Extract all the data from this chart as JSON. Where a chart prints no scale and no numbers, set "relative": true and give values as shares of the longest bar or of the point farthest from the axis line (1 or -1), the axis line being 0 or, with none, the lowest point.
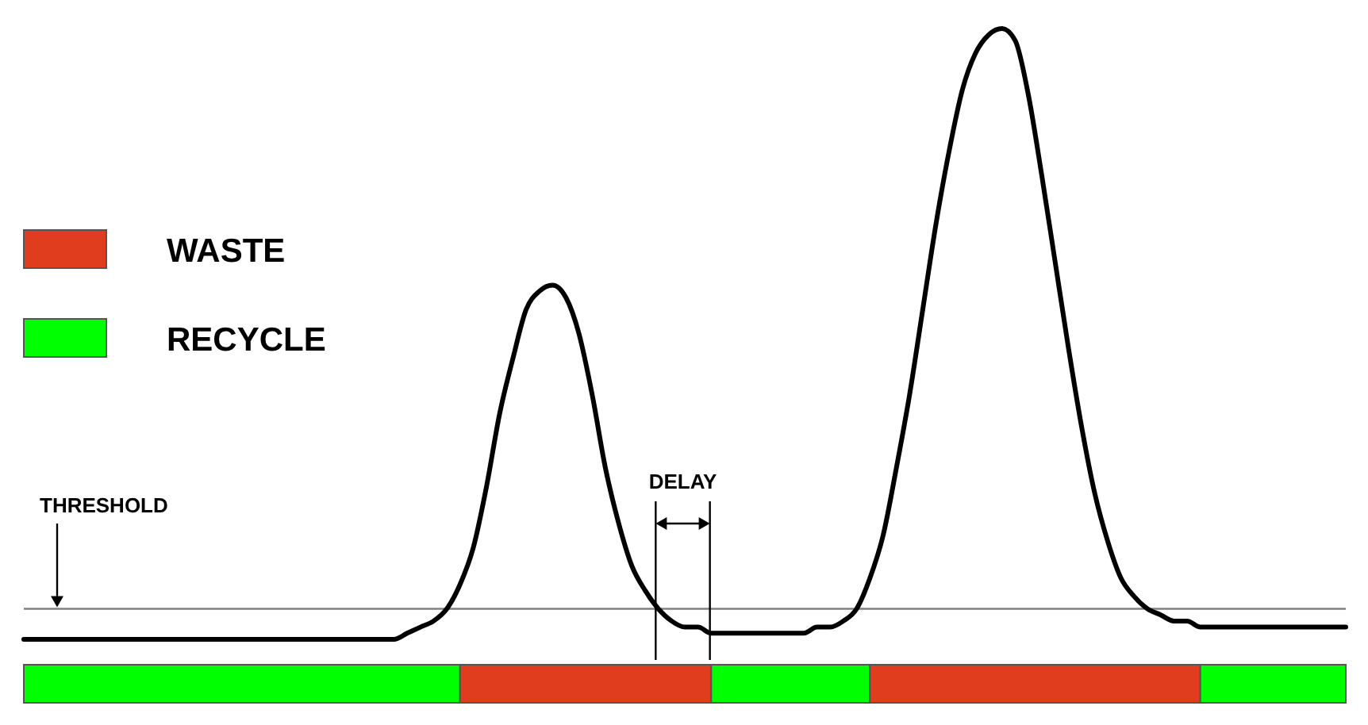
{
  "chart_data": [
    {
      "type": "line",
      "relative": true,
      "categories": [
        null,
        null,
        null,
        null,
        null,
        null,
        null,
        null,
        null,
        null,
        null,
        null,
        null,
        null,
        null,
        null,
        null,
        null,
        null,
        null,
        null,
        null,
        null,
        null,
        null,
        null,
        null,
        null,
        null,
        null,
        null,
        null,
        null,
        null,
        null,
        null,
        null,
        null,
        null,
        null,
        null,
        null,
        null,
        null,
        null,
        null,
        null,
        null,
        null,
        null,
        null,
        null,
        null,
        null,
        null,
        null,
        null,
        null,
        null,
        null,
        null,
        null,
        null,
        null,
        null,
        null,
        null,
        null,
        null,
        null,
        null,
        null,
        null,
        null,
        null,
        null,
        null,
        null,
        null,
        null,
        null,
        null,
        null,
        null,
        null,
        null,
        null,
        null,
        null,
        null,
        null,
        null,
        null,
        null,
        null,
        null,
        null,
        null,
        null,
        null,
        null
      ],
      "series": [
        {
          "color": "#000000",
          "values": [
            0,
            0,
            0,
            0,
            0,
            0,
            0,
            0,
            0,
            0,
            0,
            0,
            0,
            0,
            0,
            0,
            0,
            0,
            0,
            0,
            0,
            0,
            0,
            0,
            0,
            0,
            0,
            0,
            0,
            0.01,
            0.02,
            0.03,
            0.05,
            0.09,
            0.15,
            0.25,
            0.37,
            0.46,
            0.54,
            0.57,
            0.58,
            0.56,
            0.5,
            0.4,
            0.28,
            0.19,
            0.12,
            0.08,
            0.05,
            0.03,
            0.02,
            0.02,
            0.01,
            0.01,
            0.01,
            0.01,
            0.01,
            0.01,
            0.01,
            0.01,
            0.02,
            0.02,
            0.03,
            0.05,
            0.1,
            0.17,
            0.28,
            0.4,
            0.54,
            0.68,
            0.8,
            0.9,
            0.96,
            0.99,
            1.0,
            0.98,
            0.89,
            0.76,
            0.62,
            0.48,
            0.35,
            0.24,
            0.16,
            0.1,
            0.07,
            0.05,
            0.04,
            0.03,
            0.03,
            0.02,
            0.02,
            0.02,
            0.02,
            0.02,
            0.02,
            0.02,
            0.02,
            0.02,
            0.02,
            0.02,
            0.02
          ]
        }
      ],
      "ref_lines": [
        {
          "axis": "y",
          "value": 0.05,
          "label": "THRESHOLD",
          "color": "#808080"
        }
      ],
      "annotations": [
        "DELAY"
      ]
    },
    {
      "type": "bar",
      "orientation": "horizontal",
      "stacked": true,
      "relative": true,
      "categories": [
        null
      ],
      "legend": "left",
      "series": [
        {
          "name": "RECYCLE",
          "color": "#00ff00",
          "values": [
            0.33
          ]
        },
        {
          "name": "WASTE",
          "color": "#e03c1e",
          "values": [
            0.19
          ]
        },
        {
          "color": "#00ff00",
          "values": [
            0.12
          ]
        },
        {
          "color": "#e03c1e",
          "values": [
            0.25
          ]
        },
        {
          "color": "#00ff00",
          "values": [
            0.11
          ]
        }
      ]
    }
  ]
}
